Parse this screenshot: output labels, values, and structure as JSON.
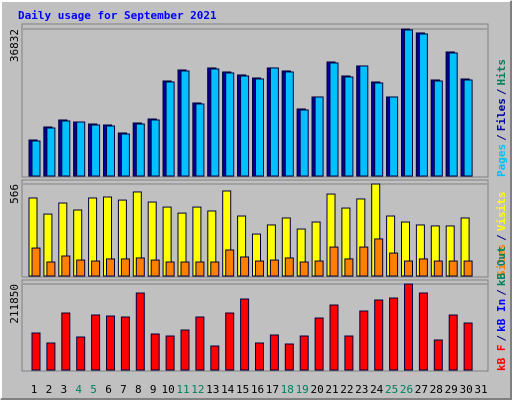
{
  "chart_data": {
    "type": "bar",
    "title": "Daily usage for September 2021",
    "categories": [
      "1",
      "2",
      "3",
      "4",
      "5",
      "6",
      "7",
      "8",
      "9",
      "10",
      "11",
      "12",
      "13",
      "14",
      "15",
      "16",
      "17",
      "18",
      "19",
      "20",
      "21",
      "22",
      "23",
      "24",
      "25",
      "26",
      "27",
      "28",
      "29",
      "30",
      "31"
    ],
    "category_colors": [
      "#000000",
      "#000000",
      "#000000",
      "#00805c",
      "#00805c",
      "#000000",
      "#000000",
      "#000000",
      "#000000",
      "#000000",
      "#00805c",
      "#00805c",
      "#000000",
      "#000000",
      "#000000",
      "#000000",
      "#000000",
      "#00805c",
      "#00805c",
      "#000000",
      "#000000",
      "#000000",
      "#000000",
      "#000000",
      "#00805c",
      "#00805c",
      "#000000",
      "#000000",
      "#000000",
      "#000000",
      "#000000"
    ],
    "legend_separator": "/",
    "panels": [
      {
        "ylim": [
          0,
          36832
        ],
        "yticks": [
          36832
        ],
        "series": [
          {
            "name": "Pages",
            "color": "#00c0ff",
            "values": [
              8771,
              12029,
              13783,
              13532,
              12781,
              12530,
              10525,
              13031,
              14034,
              23556,
              26313,
              18043,
              26814,
              25812,
              25060,
              24308,
              27065,
              26062,
              16540,
              19797,
              28318,
              24809,
              27566,
              23306,
              19797,
              36587,
              35585,
              23807,
              30824,
              24058,
              null
            ]
          },
          {
            "name": "Files",
            "color": "#0000a0",
            "values": [
              9022,
              12279,
              14034,
              13532,
              13031,
              12781,
              10776,
              13282,
              14284,
              23807,
              26564,
              18294,
              27065,
              26062,
              25311,
              24559,
              27065,
              26313,
              16790,
              19797,
              28568,
              25060,
              27566,
              23556,
              19797,
              36832,
              35836,
              24058,
              31074,
              24308,
              null
            ]
          },
          {
            "name": "Hits",
            "color": "#00805c",
            "values": [
              9022,
              12279,
              14034,
              13532,
              13031,
              12781,
              10776,
              13282,
              14284,
              23807,
              26564,
              18294,
              27065,
              26062,
              25311,
              24559,
              27065,
              26313,
              16790,
              19797,
              28568,
              25060,
              27566,
              23556,
              19797,
              36832,
              35836,
              24058,
              31074,
              24308,
              null
            ]
          }
        ]
      },
      {
        "ylim": [
          0,
          566
        ],
        "yticks": [
          566
        ],
        "series": [
          {
            "name": "Sites",
            "color": "#ff8000",
            "values": [
              172,
              86,
              123,
              98,
              92,
              105,
              105,
              111,
              98,
              86,
              86,
              86,
              86,
              160,
              117,
              92,
              98,
              111,
              86,
              92,
              178,
              105,
              178,
              228,
              141,
              92,
              105,
              92,
              92,
              92,
              null
            ]
          },
          {
            "name": "Visits",
            "color": "#ffff00",
            "values": [
              480,
              381,
              449,
              406,
              480,
              486,
              467,
              517,
              455,
              424,
              387,
              424,
              400,
              523,
              369,
              258,
              314,
              357,
              289,
              332,
              504,
              418,
              474,
              566,
              369,
              332,
              314,
              308,
              308,
              357,
              null
            ]
          }
        ]
      },
      {
        "ylim": [
          0,
          211850
        ],
        "yticks": [
          211850
        ],
        "series": [
          {
            "name": "kB F",
            "color": "#ff0000",
            "values": [
              91131,
              66501,
              140391,
              81279,
              135465,
              133002,
              130539,
              189651,
              88668,
              83742,
              98520,
              130539,
              59112,
              140391,
              174873,
              66501,
              86205,
              64038,
              83742,
              128076,
              160095,
              83742,
              145317,
              172410,
              177336,
              211850,
              189651,
              73890,
              135465,
              115761,
              null
            ]
          },
          {
            "name": "kB In",
            "color": "#0000ff",
            "values": [
              null,
              null,
              null,
              null,
              null,
              null,
              null,
              null,
              null,
              null,
              null,
              null,
              null,
              null,
              null,
              null,
              null,
              null,
              null,
              null,
              null,
              null,
              null,
              null,
              null,
              null,
              null,
              null,
              null,
              null,
              null
            ]
          },
          {
            "name": "kB Out",
            "color": "#00805c",
            "values": [
              null,
              null,
              null,
              null,
              null,
              null,
              null,
              null,
              null,
              null,
              null,
              null,
              null,
              null,
              null,
              null,
              null,
              null,
              null,
              null,
              null,
              null,
              null,
              null,
              null,
              null,
              null,
              null,
              null,
              null,
              null
            ]
          }
        ]
      }
    ]
  }
}
